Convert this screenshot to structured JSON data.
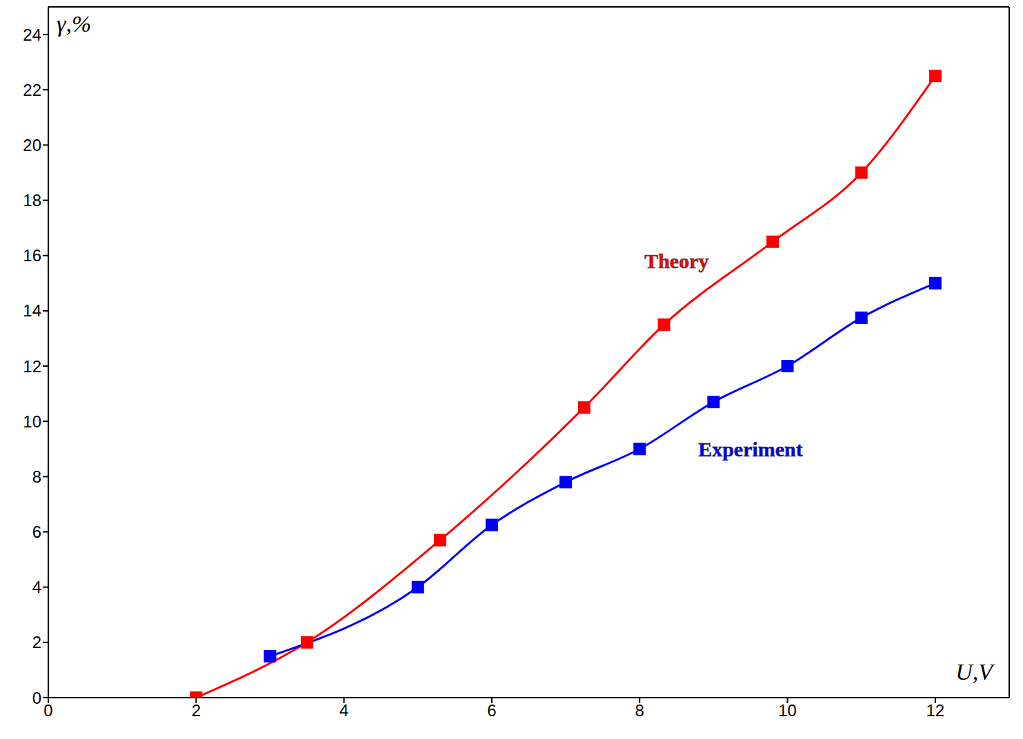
{
  "chart_data": {
    "type": "line",
    "xlabel": "U,V",
    "ylabel": "γ,%",
    "xlim": [
      0,
      13
    ],
    "xticks": [
      0,
      2,
      4,
      6,
      8,
      10,
      12
    ],
    "ylim": [
      0,
      25
    ],
    "yticks": [
      0,
      2,
      4,
      6,
      8,
      10,
      12,
      14,
      16,
      18,
      20,
      22,
      24
    ],
    "grid": false,
    "series": [
      {
        "name": "Theory",
        "color": "#ff0000",
        "marker": "square",
        "line_style": "solid",
        "x": [
          2,
          3.5,
          5.3,
          7.25,
          8.33,
          9.8,
          11,
          12
        ],
        "values": [
          0,
          2,
          5.7,
          10.5,
          13.5,
          16.5,
          19,
          22.5
        ]
      },
      {
        "name": "Experiment",
        "color": "#0000ff",
        "marker": "square",
        "line_style": "solid",
        "x": [
          3,
          5,
          6,
          7,
          8,
          9,
          10,
          11,
          12
        ],
        "values": [
          1.5,
          4,
          6.25,
          7.8,
          9,
          10.7,
          12,
          13.75,
          15
        ]
      }
    ],
    "annotations": [
      {
        "text": "Theory",
        "x": 8.5,
        "y": 15.8,
        "color": "#ff0000"
      },
      {
        "text": "Experiment",
        "x": 9.5,
        "y": 9.0,
        "color": "#0000ff"
      }
    ]
  }
}
